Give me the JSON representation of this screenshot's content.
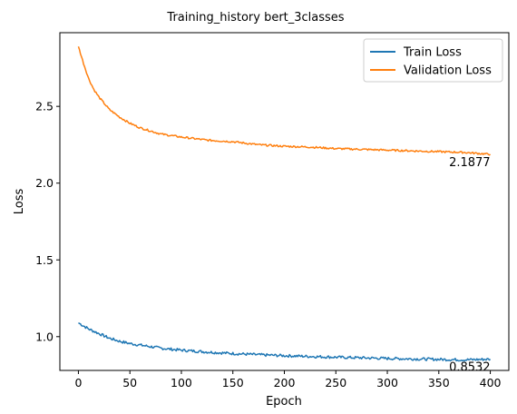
{
  "chart_data": {
    "type": "line",
    "title": "Training_history bert_3classes",
    "xlabel": "Epoch",
    "ylabel": "Loss",
    "xlim": [
      -18,
      418
    ],
    "ylim": [
      0.78,
      2.98
    ],
    "xticks": [
      0,
      50,
      100,
      150,
      200,
      250,
      300,
      350,
      400
    ],
    "yticks": [
      1.0,
      1.5,
      2.0,
      2.5
    ],
    "ytick_labels": [
      "1.0",
      "1.5",
      "2.0",
      "2.5"
    ],
    "grid": false,
    "legend": "top-right",
    "series": [
      {
        "name": "Train Loss",
        "color": "#1f77b4",
        "x": [
          0,
          5,
          10,
          20,
          30,
          40,
          50,
          60,
          70,
          80,
          90,
          100,
          125,
          150,
          175,
          200,
          225,
          250,
          275,
          300,
          325,
          350,
          375,
          400
        ],
        "y": [
          1.09,
          1.07,
          1.05,
          1.02,
          0.99,
          0.97,
          0.955,
          0.945,
          0.935,
          0.925,
          0.918,
          0.912,
          0.9,
          0.89,
          0.882,
          0.876,
          0.871,
          0.866,
          0.862,
          0.858,
          0.855,
          0.852,
          0.849,
          0.8532
        ]
      },
      {
        "name": "Validation Loss",
        "color": "#ff7f0e",
        "x": [
          0,
          5,
          10,
          15,
          20,
          25,
          30,
          40,
          50,
          60,
          70,
          80,
          90,
          100,
          125,
          150,
          175,
          200,
          225,
          250,
          275,
          300,
          325,
          350,
          375,
          400
        ],
        "y": [
          2.89,
          2.78,
          2.68,
          2.61,
          2.56,
          2.52,
          2.48,
          2.43,
          2.39,
          2.36,
          2.34,
          2.32,
          2.31,
          2.3,
          2.28,
          2.27,
          2.25,
          2.24,
          2.235,
          2.225,
          2.22,
          2.215,
          2.21,
          2.205,
          2.2,
          2.1877
        ]
      }
    ],
    "annotations": [
      {
        "text": "2.1877",
        "x": 400,
        "y": 2.1877,
        "series": "Validation Loss"
      },
      {
        "text": "0.8532",
        "x": 400,
        "y": 0.8532,
        "series": "Train Loss"
      }
    ]
  }
}
